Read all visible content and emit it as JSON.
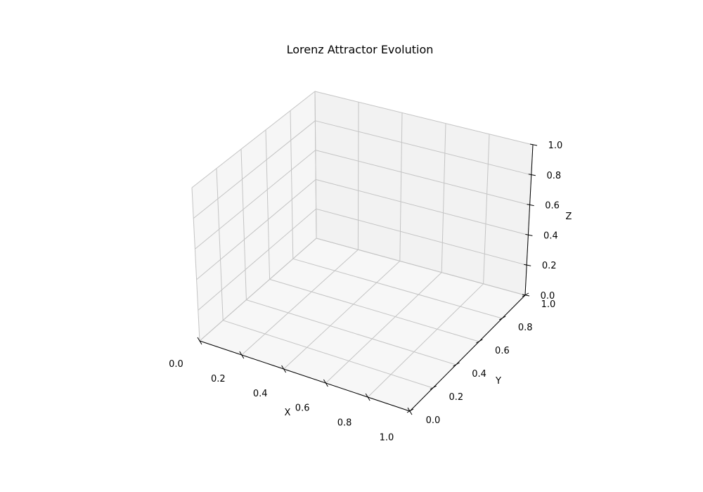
{
  "chart_data": {
    "type": "line",
    "title": "Lorenz Attractor Evolution",
    "xlabel": "X",
    "ylabel": "Y",
    "zlabel": "Z",
    "xlim": [
      0,
      1
    ],
    "ylim": [
      0,
      1
    ],
    "zlim": [
      0,
      1
    ],
    "grid": true,
    "xticks": [
      "0.0",
      "0.2",
      "0.4",
      "0.6",
      "0.8",
      "1.0"
    ],
    "yticks": [
      "0.0",
      "0.2",
      "0.4",
      "0.6",
      "0.8",
      "1.0"
    ],
    "zticks": [
      "0.0",
      "0.2",
      "0.4",
      "0.6",
      "0.8",
      "1.0"
    ],
    "series": []
  }
}
